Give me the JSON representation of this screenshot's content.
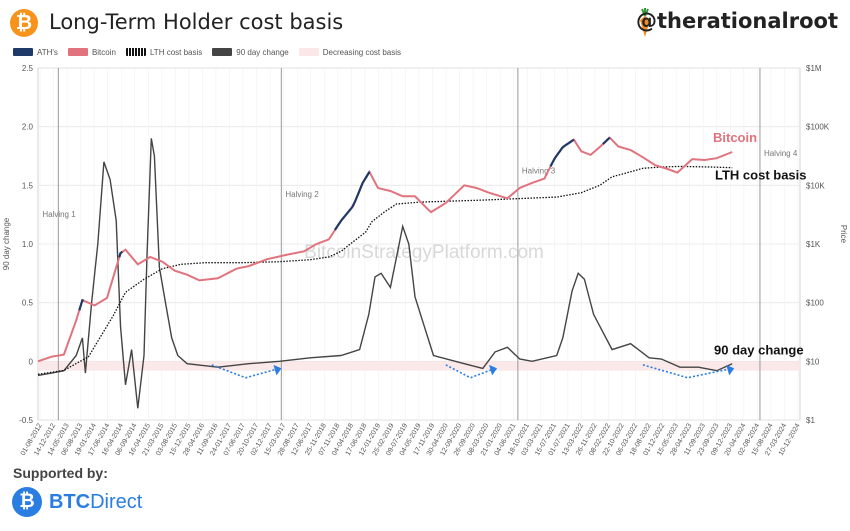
{
  "header": {
    "title": "Long-Term Holder cost basis",
    "handle": "@therationalroot",
    "logo_glyph": "₿"
  },
  "legend": [
    {
      "label": "ATH's",
      "color": "#1f3a68"
    },
    {
      "label": "Bitcoin",
      "color": "#e0737d"
    },
    {
      "label": "LTH cost basis",
      "color": "#111111"
    },
    {
      "label": "90 day change",
      "color": "#444444"
    },
    {
      "label": "Decreasing cost basis",
      "color": "#fbe7e7"
    }
  ],
  "footer": {
    "supported_by": "Supported by:",
    "sponsor_bold": "BTC",
    "sponsor_light": "Direct",
    "sponsor_icon": "₿"
  },
  "chart_data": {
    "type": "line",
    "title": "Long-Term Holder cost basis",
    "watermark": "BitcoinStrategyPlatform.com",
    "y_left": {
      "label": "90 day change",
      "range": [
        -0.5,
        2.5
      ],
      "ticks": [
        "-0.5",
        "0",
        "0.5",
        "1.0",
        "1.5",
        "2.0",
        "2.5"
      ]
    },
    "y_right": {
      "label": "Price",
      "scale": "log",
      "range": [
        1,
        1000000
      ],
      "ticks": [
        "$1",
        "$10",
        "$100",
        "$1K",
        "$10K",
        "$100K",
        "$1M"
      ]
    },
    "x_range": [
      2012.58,
      2024.95
    ],
    "x_ticks": [
      "01-08-2012",
      "14-12-2012",
      "14-05-2013",
      "06-08-2013",
      "19-01-2014",
      "17-06-2014",
      "16-04-2014",
      "06-09-2014",
      "16-04-2015",
      "21-03-2015",
      "03-08-2015",
      "15-12-2015",
      "28-04-2016",
      "11-09-2016",
      "24-01-2017",
      "07-06-2017",
      "20-10-2017",
      "02-12-2017",
      "15-03-2017",
      "28-08-2017",
      "12-06-2017",
      "25-11-2018",
      "07-11-2018",
      "04-04-2018",
      "17-06-2018",
      "12-01-2019",
      "25-02-2019",
      "09-07-2019",
      "04-05-2019",
      "17-11-2019",
      "30-04-2020",
      "12-09-2020",
      "26-09-2020",
      "08-03-2020",
      "21-01-2020",
      "04-06-2021",
      "18-10-2021",
      "03-03-2021",
      "15-07-2021",
      "01-07-2021",
      "13-03-2022",
      "26-11-2022",
      "08-02-2022",
      "22-10-2022",
      "06-03-2022",
      "18-08-2022",
      "01-12-2022",
      "15-05-2023",
      "28-04-2023",
      "11-09-2023",
      "23-09-2023",
      "09-12-2023",
      "20-04-2024",
      "02-08-2024",
      "15-08-2024",
      "27-03-2024",
      "10-12-2024"
    ],
    "halvings": [
      {
        "label": "Halving 1",
        "x": 2012.91
      },
      {
        "label": "Halving 2",
        "x": 2016.53
      },
      {
        "label": "Halving 3",
        "x": 2020.37
      },
      {
        "label": "Halving 4",
        "x": 2024.3
      }
    ],
    "annotations": {
      "bitcoin": "Bitcoin",
      "lth": "LTH cost basis",
      "change": "90 day change"
    },
    "series": [
      {
        "name": "Bitcoin",
        "axis": "right",
        "x": [
          2012.58,
          2012.8,
          2013.0,
          2013.2,
          2013.3,
          2013.5,
          2013.7,
          2013.92,
          2014.0,
          2014.2,
          2014.4,
          2014.6,
          2014.8,
          2015.0,
          2015.2,
          2015.5,
          2015.8,
          2016.0,
          2016.3,
          2016.6,
          2016.9,
          2017.1,
          2017.3,
          2017.5,
          2017.7,
          2017.85,
          2017.96,
          2018.1,
          2018.3,
          2018.5,
          2018.7,
          2018.9,
          2018.96,
          2019.2,
          2019.5,
          2019.7,
          2019.9,
          2020.2,
          2020.4,
          2020.6,
          2020.8,
          2020.96,
          2021.1,
          2021.28,
          2021.4,
          2021.55,
          2021.7,
          2021.86,
          2022.0,
          2022.2,
          2022.4,
          2022.6,
          2022.8,
          2022.96,
          2023.2,
          2023.4,
          2023.6,
          2023.85
        ],
        "values": [
          10,
          12,
          13,
          50,
          110,
          90,
          120,
          700,
          800,
          450,
          600,
          500,
          350,
          300,
          240,
          260,
          380,
          420,
          550,
          650,
          750,
          1000,
          1200,
          2500,
          4500,
          11000,
          17000,
          9000,
          8000,
          6500,
          6500,
          4000,
          3500,
          5000,
          10000,
          9000,
          7500,
          6000,
          9000,
          11000,
          13000,
          28000,
          45000,
          60000,
          38000,
          33000,
          45000,
          65000,
          46000,
          40000,
          30000,
          22000,
          19000,
          16500,
          28000,
          27000,
          29000,
          37000
        ]
      },
      {
        "name": "LTH cost basis",
        "axis": "right",
        "x": [
          2012.58,
          2013.0,
          2013.4,
          2013.8,
          2014.0,
          2014.3,
          2014.6,
          2014.9,
          2015.3,
          2015.9,
          2016.5,
          2017.0,
          2017.3,
          2017.5,
          2017.7,
          2017.9,
          2018.0,
          2018.2,
          2018.4,
          2018.8,
          2019.1,
          2019.8,
          2020.5,
          2021.0,
          2021.4,
          2021.7,
          2021.9,
          2022.2,
          2022.4,
          2022.7,
          2023.0,
          2023.5,
          2023.85
        ],
        "values": [
          6,
          7,
          12,
          60,
          150,
          250,
          380,
          450,
          480,
          480,
          500,
          540,
          600,
          750,
          1100,
          1600,
          2400,
          3500,
          4800,
          5200,
          5300,
          5600,
          6000,
          6300,
          7500,
          10000,
          14000,
          17000,
          19500,
          20500,
          21000,
          20500,
          20000
        ]
      },
      {
        "name": "90 day change",
        "axis": "left",
        "x": [
          2012.58,
          2012.8,
          2013.0,
          2013.2,
          2013.3,
          2013.35,
          2013.45,
          2013.55,
          2013.65,
          2013.75,
          2013.85,
          2013.92,
          2014.0,
          2014.1,
          2014.2,
          2014.3,
          2014.35,
          2014.42,
          2014.47,
          2014.55,
          2014.65,
          2014.75,
          2014.85,
          2015.0,
          2015.5,
          2016.0,
          2016.5,
          2017.0,
          2017.5,
          2017.8,
          2017.95,
          2018.05,
          2018.15,
          2018.3,
          2018.5,
          2018.6,
          2018.7,
          2018.85,
          2019.0,
          2019.5,
          2019.8,
          2020.0,
          2020.2,
          2020.4,
          2020.6,
          2021.0,
          2021.1,
          2021.25,
          2021.35,
          2021.45,
          2021.6,
          2021.9,
          2022.2,
          2022.5,
          2022.7,
          2023.0,
          2023.3,
          2023.6,
          2023.85
        ],
        "values": [
          -0.12,
          -0.1,
          -0.08,
          0.05,
          0.2,
          -0.1,
          0.5,
          1.0,
          1.7,
          1.55,
          1.2,
          0.3,
          -0.2,
          0.1,
          -0.4,
          0.05,
          0.9,
          1.9,
          1.75,
          0.8,
          0.5,
          0.2,
          0.05,
          -0.02,
          -0.05,
          -0.02,
          0.0,
          0.03,
          0.05,
          0.1,
          0.4,
          0.72,
          0.75,
          0.63,
          1.15,
          1.0,
          0.55,
          0.3,
          0.05,
          -0.02,
          -0.06,
          0.08,
          0.12,
          0.02,
          0.0,
          0.05,
          0.2,
          0.6,
          0.75,
          0.7,
          0.4,
          0.1,
          0.15,
          0.03,
          0.02,
          -0.05,
          -0.05,
          -0.08,
          -0.02
        ]
      }
    ],
    "decreasing_cost_basis_band": [
      -0.08,
      0.0
    ],
    "ath_points": {
      "name": "ATH's",
      "segments": [
        [
          2013.25,
          2013.32
        ],
        [
          2013.9,
          2013.95
        ],
        [
          2017.4,
          2017.96
        ],
        [
          2020.9,
          2021.28
        ],
        [
          2021.75,
          2021.86
        ]
      ]
    },
    "grid": true,
    "legend_position": "top-left"
  }
}
